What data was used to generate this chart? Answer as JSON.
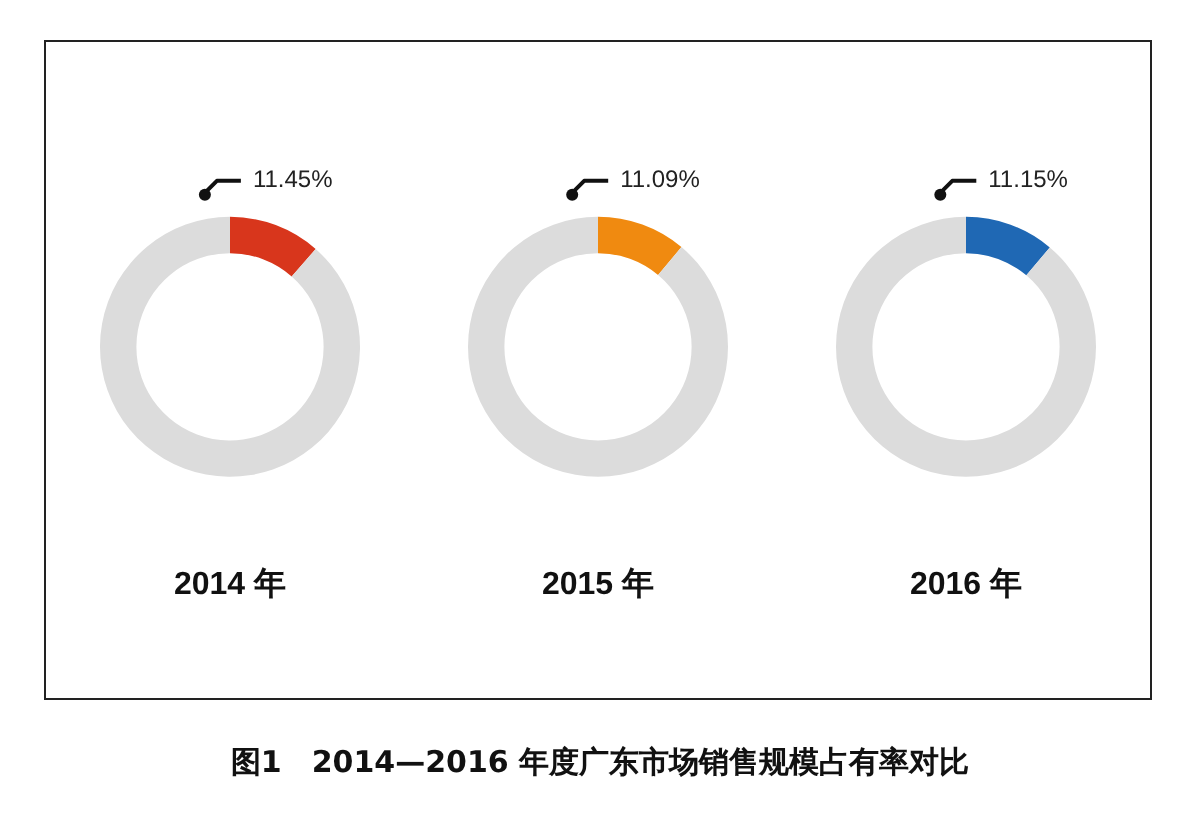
{
  "chart_data": [
    {
      "type": "donut",
      "title": "2014 年",
      "categories": [
        null,
        null
      ],
      "values": [
        11.45,
        88.55
      ],
      "colors": [
        "#d8361c",
        "#dcdcdc"
      ],
      "value_labels": [
        "11.45%",
        null
      ],
      "legend": false,
      "annotations": [
        "图1　2014—2016 年度广东市场销售规模占有率对比"
      ]
    },
    {
      "type": "donut",
      "title": "2015 年",
      "categories": [
        null,
        null
      ],
      "values": [
        11.09,
        88.91
      ],
      "colors": [
        "#f08a10",
        "#dcdcdc"
      ],
      "value_labels": [
        "11.09%",
        null
      ],
      "legend": false
    },
    {
      "type": "donut",
      "title": "2016 年",
      "categories": [
        null,
        null
      ],
      "values": [
        11.15,
        88.85
      ],
      "colors": [
        "#1f68b4",
        "#dcdcdc"
      ],
      "value_labels": [
        "11.15%",
        null
      ],
      "legend": false
    }
  ]
}
